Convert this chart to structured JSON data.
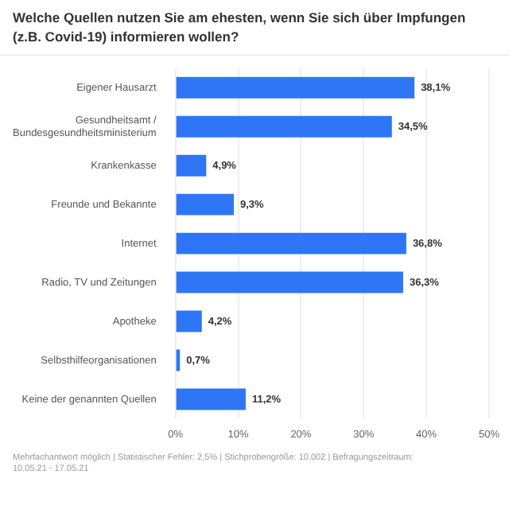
{
  "chart_data": {
    "type": "bar",
    "orientation": "horizontal",
    "title": "Welche Quellen nutzen Sie am ehesten, wenn Sie sich über Impfungen (z.B. Covid-19) informieren wollen?",
    "categories": [
      "Eigener Hausarzt",
      "Gesundheitsamt / Bundesgesundheitsministerium",
      "Krankenkasse",
      "Freunde und Bekannte",
      "Internet",
      "Radio, TV und Zeitungen",
      "Apotheke",
      "Selbsthilfeorganisationen",
      "Keine der genannten Quellen"
    ],
    "values": [
      38.1,
      34.5,
      4.9,
      9.3,
      36.8,
      36.3,
      4.2,
      0.7,
      11.2
    ],
    "value_labels": [
      "38,1%",
      "34,5%",
      "4,9%",
      "9,3%",
      "36,8%",
      "36,3%",
      "4,2%",
      "0,7%",
      "11,2%"
    ],
    "color": "#2f76f6",
    "xlim": [
      0,
      50
    ],
    "xticks": [
      {
        "value": 0,
        "label": "0%"
      },
      {
        "value": 10,
        "label": "10%"
      },
      {
        "value": 20,
        "label": "20%"
      },
      {
        "value": 30,
        "label": "30%"
      },
      {
        "value": 40,
        "label": "40%"
      },
      {
        "value": 50,
        "label": "50%"
      }
    ],
    "grid": "x",
    "legend": false,
    "annotations": [
      "Mehrfachantwort möglich | Statistischer Fehler: 2,5% | Stichprobengröße: 10.002 | Befragungszeitraum: 10.05.21 - 17.05.21"
    ]
  }
}
